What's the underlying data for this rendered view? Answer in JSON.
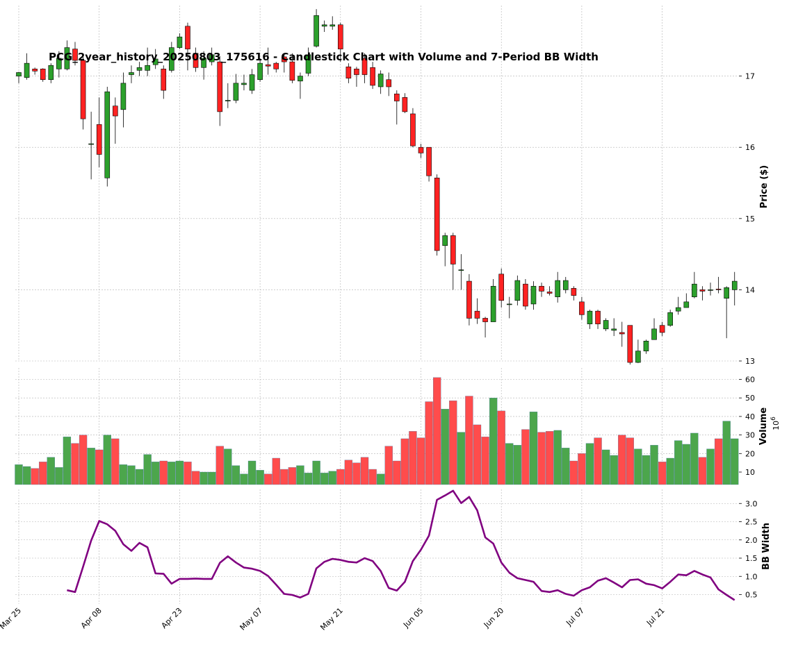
{
  "chart_data": {
    "type": "candlestick",
    "title": "PCG_2year_history_20250803_175616 - Candlestick Chart with Volume and 7-Period BB Width",
    "colors": {
      "up": "#2ca02c",
      "down": "#ff2222",
      "vol_up": "#4ca64c",
      "vol_down": "#ff4c4c",
      "bbw": "#800080",
      "grid": "#b0b0b0"
    },
    "x_ticks": [
      {
        "index": 0,
        "label": "Mar 25"
      },
      {
        "index": 10,
        "label": "Apr 08"
      },
      {
        "index": 20,
        "label": "Apr 23"
      },
      {
        "index": 30,
        "label": "May 07"
      },
      {
        "index": 40,
        "label": "May 21"
      },
      {
        "index": 50,
        "label": "Jun 05"
      },
      {
        "index": 60,
        "label": "Jun 20"
      },
      {
        "index": 70,
        "label": "Jul 07"
      },
      {
        "index": 80,
        "label": "Jul 21"
      }
    ],
    "price_panel": {
      "ylabel": "Price ($)",
      "ylim": [
        13,
        18
      ],
      "yticks": [
        13,
        14,
        15,
        16,
        17
      ],
      "candles": [
        [
          17.0,
          17.05,
          16.9,
          17.06
        ],
        [
          16.98,
          17.18,
          16.95,
          17.32
        ],
        [
          17.1,
          17.07,
          17.02,
          17.12
        ],
        [
          17.1,
          16.95,
          16.92,
          17.11
        ],
        [
          16.95,
          17.15,
          16.9,
          17.18
        ],
        [
          17.1,
          17.25,
          16.98,
          17.35
        ],
        [
          17.1,
          17.4,
          17.08,
          17.5
        ],
        [
          17.38,
          17.22,
          17.15,
          17.48
        ],
        [
          17.22,
          16.4,
          16.25,
          17.28
        ],
        [
          16.04,
          16.05,
          15.55,
          16.5
        ],
        [
          16.32,
          15.9,
          15.72,
          16.7
        ],
        [
          15.57,
          16.78,
          15.45,
          16.85
        ],
        [
          16.58,
          16.44,
          16.05,
          16.7
        ],
        [
          16.53,
          16.9,
          16.28,
          17.05
        ],
        [
          17.02,
          17.05,
          16.9,
          17.15
        ],
        [
          17.08,
          17.12,
          17.0,
          17.2
        ],
        [
          17.08,
          17.15,
          17.0,
          17.4
        ],
        [
          17.16,
          17.24,
          17.1,
          17.38
        ],
        [
          17.1,
          16.8,
          16.68,
          17.15
        ],
        [
          17.08,
          17.4,
          17.05,
          17.48
        ],
        [
          17.4,
          17.55,
          17.38,
          17.6
        ],
        [
          17.7,
          17.38,
          17.08,
          17.75
        ],
        [
          17.32,
          17.12,
          17.06,
          17.4
        ],
        [
          17.12,
          17.25,
          16.95,
          17.35
        ],
        [
          17.2,
          17.3,
          17.15,
          17.4
        ],
        [
          17.2,
          16.5,
          16.3,
          17.28
        ],
        [
          16.65,
          16.66,
          16.55,
          16.9
        ],
        [
          16.66,
          16.9,
          16.62,
          17.03
        ],
        [
          16.88,
          16.9,
          16.8,
          17.02
        ],
        [
          16.8,
          17.02,
          16.75,
          17.1
        ],
        [
          16.95,
          17.18,
          16.92,
          17.25
        ],
        [
          17.16,
          17.14,
          17.02,
          17.4
        ],
        [
          17.18,
          17.1,
          17.05,
          17.2
        ],
        [
          17.27,
          17.2,
          17.05,
          17.32
        ],
        [
          17.2,
          16.94,
          16.9,
          17.32
        ],
        [
          16.93,
          17.0,
          16.68,
          17.05
        ],
        [
          17.04,
          17.3,
          17.0,
          17.4
        ],
        [
          17.42,
          17.85,
          17.4,
          17.94
        ],
        [
          17.7,
          17.72,
          17.62,
          17.78
        ],
        [
          17.7,
          17.72,
          17.65,
          17.84
        ],
        [
          17.72,
          17.38,
          17.2,
          17.75
        ],
        [
          17.13,
          16.97,
          16.9,
          17.18
        ],
        [
          17.1,
          17.02,
          16.85,
          17.13
        ],
        [
          17.25,
          17.02,
          16.9,
          17.32
        ],
        [
          17.12,
          16.87,
          16.82,
          17.2
        ],
        [
          16.85,
          17.03,
          16.75,
          17.08
        ],
        [
          16.95,
          16.85,
          16.72,
          17.05
        ],
        [
          16.75,
          16.65,
          16.32,
          16.8
        ],
        [
          16.7,
          16.5,
          16.48,
          16.76
        ],
        [
          16.47,
          16.02,
          16.0,
          16.55
        ],
        [
          16.0,
          15.92,
          15.85,
          16.05
        ],
        [
          16.0,
          15.6,
          15.52,
          16.0
        ],
        [
          15.57,
          14.55,
          14.48,
          15.62
        ],
        [
          14.62,
          14.76,
          14.33,
          14.8
        ],
        [
          14.76,
          14.36,
          14.0,
          14.8
        ],
        [
          14.28,
          14.28,
          14.0,
          14.5
        ],
        [
          14.12,
          13.6,
          13.5,
          14.22
        ],
        [
          13.7,
          13.6,
          13.52,
          13.88
        ],
        [
          13.6,
          13.55,
          13.33,
          13.62
        ],
        [
          13.55,
          14.05,
          13.55,
          14.15
        ],
        [
          14.22,
          13.85,
          13.75,
          14.3
        ],
        [
          13.8,
          13.8,
          13.6,
          13.9
        ],
        [
          13.85,
          14.13,
          13.78,
          14.2
        ],
        [
          14.08,
          13.77,
          13.72,
          14.15
        ],
        [
          13.8,
          14.05,
          13.72,
          14.12
        ],
        [
          14.05,
          13.98,
          13.9,
          14.1
        ],
        [
          13.97,
          13.95,
          13.92,
          14.05
        ],
        [
          13.9,
          14.13,
          13.82,
          14.25
        ],
        [
          14.0,
          14.13,
          13.95,
          14.18
        ],
        [
          14.02,
          13.92,
          13.85,
          14.05
        ],
        [
          13.83,
          13.65,
          13.58,
          13.9
        ],
        [
          13.52,
          13.7,
          13.45,
          13.72
        ],
        [
          13.7,
          13.52,
          13.45,
          13.72
        ],
        [
          13.45,
          13.57,
          13.42,
          13.6
        ],
        [
          13.43,
          13.45,
          13.35,
          13.6
        ],
        [
          13.4,
          13.38,
          13.2,
          13.55
        ],
        [
          13.5,
          12.98,
          12.95,
          13.5
        ],
        [
          12.98,
          13.14,
          12.97,
          13.3
        ],
        [
          13.14,
          13.28,
          13.1,
          13.3
        ],
        [
          13.3,
          13.45,
          13.3,
          13.6
        ],
        [
          13.5,
          13.4,
          13.35,
          13.55
        ],
        [
          13.5,
          13.68,
          13.48,
          13.72
        ],
        [
          13.7,
          13.75,
          13.65,
          13.9
        ],
        [
          13.75,
          13.83,
          13.75,
          13.95
        ],
        [
          13.9,
          14.08,
          13.88,
          14.25
        ],
        [
          14.0,
          13.98,
          13.85,
          14.05
        ],
        [
          14.0,
          14.0,
          13.92,
          14.1
        ],
        [
          14.01,
          14.0,
          13.95,
          14.18
        ],
        [
          13.88,
          14.03,
          13.32,
          14.05
        ],
        [
          14.0,
          14.12,
          13.78,
          14.25
        ]
      ]
    },
    "volume_panel": {
      "ylabel": "Volume",
      "multiplier_label": "10",
      "multiplier_exponent": "6",
      "ylim": [
        3.5,
        64
      ],
      "yticks": [
        10,
        20,
        30,
        40,
        50,
        60
      ],
      "values": [
        14,
        13,
        12,
        15.5,
        18,
        12.5,
        29,
        25.5,
        30,
        23,
        22,
        30,
        28,
        14,
        13.5,
        11.5,
        19.5,
        15.5,
        16,
        15.5,
        16,
        15.5,
        10.5,
        10,
        10,
        24,
        22.5,
        13.5,
        9,
        16,
        11,
        9,
        17.5,
        11.5,
        12.5,
        13.5,
        9.5,
        16,
        9.5,
        10.5,
        11.5,
        16.5,
        15,
        18,
        11.5,
        9,
        24,
        16,
        28,
        32,
        28.5,
        48,
        61,
        44,
        48.5,
        31.5,
        51,
        35.5,
        29,
        50,
        43,
        25.5,
        24.5,
        33,
        42.5,
        31.5,
        32,
        32.5,
        23,
        16,
        20,
        25.5,
        28.5,
        22,
        19,
        30,
        28.5,
        22.5,
        19,
        24.5,
        15.5,
        17.5,
        27,
        25,
        31,
        18,
        22.5,
        28,
        37.5,
        28
      ]
    },
    "bbw_panel": {
      "ylabel": "BB Width",
      "ylim": [
        0.22,
        3.55
      ],
      "yticks": [
        0.5,
        1.0,
        1.5,
        2.0,
        2.5,
        3.0
      ],
      "start_index": 6,
      "values": [
        0.62,
        0.57,
        1.27,
        1.98,
        2.52,
        2.43,
        2.25,
        1.88,
        1.7,
        1.92,
        1.8,
        1.08,
        1.07,
        0.8,
        0.93,
        0.93,
        0.94,
        0.93,
        0.93,
        1.37,
        1.55,
        1.38,
        1.24,
        1.21,
        1.15,
        1.01,
        0.77,
        0.52,
        0.49,
        0.42,
        0.52,
        1.22,
        1.4,
        1.48,
        1.45,
        1.4,
        1.38,
        1.5,
        1.42,
        1.15,
        0.68,
        0.61,
        0.85,
        1.42,
        1.73,
        2.12,
        3.1,
        3.22,
        3.35,
        3.01,
        3.18,
        2.81,
        2.07,
        1.9,
        1.38,
        1.1,
        0.95,
        0.9,
        0.85,
        0.6,
        0.57,
        0.62,
        0.52,
        0.47,
        0.62,
        0.7,
        0.88,
        0.95,
        0.83,
        0.7,
        0.9,
        0.92,
        0.8,
        0.76,
        0.67,
        0.85,
        1.05,
        1.03,
        1.15,
        1.05,
        0.97,
        0.64,
        0.49,
        0.35
      ]
    }
  }
}
